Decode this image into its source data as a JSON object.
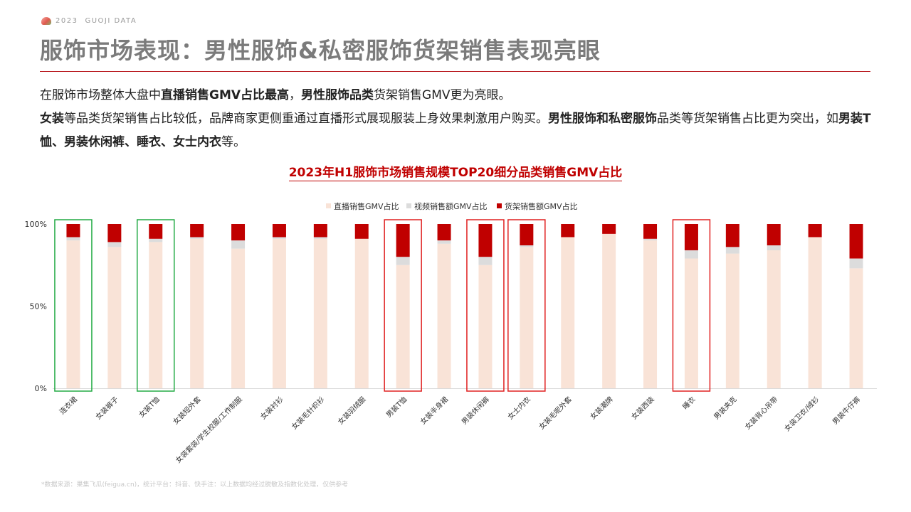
{
  "brand": {
    "year": "2023",
    "name": "GUOJI DATA"
  },
  "page_title": "服饰市场表现：男性服饰&私密服饰货架销售表现亮眼",
  "intro": {
    "l1a": "在服饰市场整体大盘中",
    "l1b": "直播销售GMV占比最高",
    "l1c": "，",
    "l1d": "男性服饰品类",
    "l1e": "货架销售GMV更为亮眼。",
    "l2a": "女装",
    "l2b": "等品类货架销售占比较低，品牌商家更侧重通过直播形式展现服装上身效果刺激用户购买。",
    "l2c": "男性服饰和私密服饰",
    "l2d": "品类等货架销售占比更为突出，如",
    "l2e": "男装T恤、男装休闲裤、睡衣、女士内衣",
    "l2f": "等。"
  },
  "footnote": "*数据来源：果集飞瓜(feigua.cn)，统计平台：抖音、快手注：以上数据均经过脱敏及指数化处理，仅供参考",
  "colors": {
    "live": "#f9e3d7",
    "video": "#dcdcdc",
    "shelf": "#c00000",
    "green_box": "#22aa44",
    "red_box": "#e02020"
  },
  "chart_data": {
    "type": "bar",
    "stacked": true,
    "title": "2023年H1服饰市场销售规模TOP20细分品类销售GMV占比",
    "ylim": [
      0,
      100
    ],
    "yticks": [
      "0%",
      "50%",
      "100%"
    ],
    "legend_position": "top-center",
    "categories": [
      "连衣裙",
      "女装裤子",
      "女装T恤",
      "女装短外套",
      "女装套装/学生校服/工作制服",
      "女装衬衫",
      "女装毛针织衫",
      "女装羽绒服",
      "男装T恤",
      "女装半身裙",
      "男装休闲裤",
      "女士内衣",
      "女装毛呢外套",
      "女装潮牌",
      "女装西装",
      "睡衣",
      "男装夹克",
      "女装背心吊带",
      "女装卫衣/绒衫",
      "男装牛仔裤"
    ],
    "series": [
      {
        "name": "直播销售GMV占比",
        "values": [
          90,
          86,
          89,
          91,
          85,
          91,
          91,
          91,
          75,
          88,
          75,
          86,
          92,
          94,
          90,
          79,
          82,
          84,
          92,
          73
        ]
      },
      {
        "name": "视频销售额GMV占比",
        "values": [
          2,
          3,
          2,
          1,
          5,
          1,
          1,
          0,
          5,
          2,
          5,
          1,
          0,
          0,
          1,
          5,
          4,
          3,
          0,
          6
        ]
      },
      {
        "name": "货架销售额GMV占比",
        "values": [
          8,
          11,
          9,
          8,
          10,
          8,
          8,
          9,
          20,
          10,
          20,
          13,
          8,
          6,
          9,
          16,
          14,
          13,
          8,
          21
        ]
      }
    ],
    "highlight_groups": [
      {
        "color": "green",
        "categories": [
          "连衣裙"
        ]
      },
      {
        "color": "green",
        "categories": [
          "女装T恤"
        ]
      },
      {
        "color": "red",
        "categories": [
          "男装T恤"
        ]
      },
      {
        "color": "red",
        "categories": [
          "男装休闲裤"
        ]
      },
      {
        "color": "red",
        "categories": [
          "女士内衣"
        ]
      },
      {
        "color": "red",
        "categories": [
          "睡衣"
        ]
      }
    ]
  }
}
